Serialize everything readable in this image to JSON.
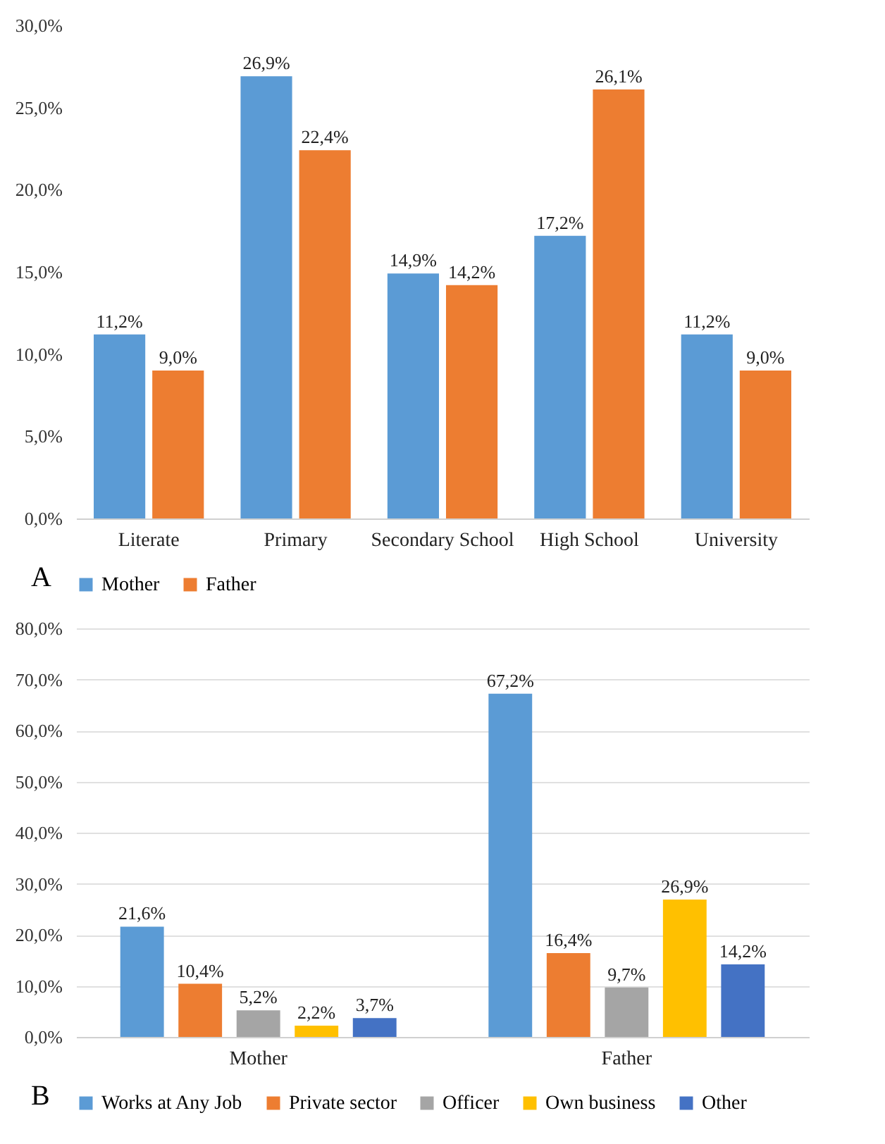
{
  "chart_data": [
    {
      "type": "bar",
      "categories": [
        "Literate",
        "Primary",
        "Secondary School",
        "High School",
        "University"
      ],
      "series": [
        {
          "name": "Mother",
          "color": "#5b9bd5",
          "values": [
            11.2,
            26.9,
            14.9,
            17.2,
            11.2
          ],
          "value_labels": [
            "11,2%",
            "26,9%",
            "14,9%",
            "17,2%",
            "11,2%"
          ]
        },
        {
          "name": "Father",
          "color": "#ed7d31",
          "values": [
            9.0,
            22.4,
            14.2,
            26.1,
            9.0
          ],
          "value_labels": [
            "9,0%",
            "22,4%",
            "14,2%",
            "26,1%",
            "9,0%"
          ]
        }
      ],
      "ylim": [
        0,
        30
      ],
      "yticks": [
        {
          "value": 0,
          "label": "0,0%"
        },
        {
          "value": 5,
          "label": "5,0%"
        },
        {
          "value": 10,
          "label": "10,0%"
        },
        {
          "value": 15,
          "label": "15,0%"
        },
        {
          "value": 20,
          "label": "20,0%"
        },
        {
          "value": 25,
          "label": "25,0%"
        },
        {
          "value": 30,
          "label": "30,0%"
        }
      ],
      "grid": false,
      "legend": "bottom",
      "annotations": [
        "A"
      ]
    },
    {
      "type": "bar",
      "categories": [
        "Mother",
        "Father"
      ],
      "series": [
        {
          "name": "Works at Any Job",
          "color": "#5b9bd5",
          "values": [
            21.6,
            67.2
          ],
          "value_labels": [
            "21,6%",
            "67,2%"
          ]
        },
        {
          "name": "Private sector",
          "color": "#ed7d31",
          "values": [
            10.4,
            16.4
          ],
          "value_labels": [
            "10,4%",
            "16,4%"
          ]
        },
        {
          "name": "Officer",
          "color": "#a5a5a5",
          "values": [
            5.2,
            9.7
          ],
          "value_labels": [
            "5,2%",
            "9,7%"
          ]
        },
        {
          "name": "Own business",
          "color": "#ffc000",
          "values": [
            2.2,
            26.9
          ],
          "value_labels": [
            "2,2%",
            "26,9%"
          ]
        },
        {
          "name": "Other",
          "color": "#4472c4",
          "values": [
            3.7,
            14.2
          ],
          "value_labels": [
            "3,7%",
            "14,2%"
          ]
        }
      ],
      "ylim": [
        0,
        80
      ],
      "yticks": [
        {
          "value": 0,
          "label": "0,0%"
        },
        {
          "value": 10,
          "label": "10,0%"
        },
        {
          "value": 20,
          "label": "20,0%"
        },
        {
          "value": 30,
          "label": "30,0%"
        },
        {
          "value": 40,
          "label": "40,0%"
        },
        {
          "value": 50,
          "label": "50,0%"
        },
        {
          "value": 60,
          "label": "60,0%"
        },
        {
          "value": 70,
          "label": "70,0%"
        },
        {
          "value": 80,
          "label": "80,0%"
        }
      ],
      "grid": "y",
      "legend": "bottom",
      "annotations": [
        "B"
      ]
    }
  ]
}
